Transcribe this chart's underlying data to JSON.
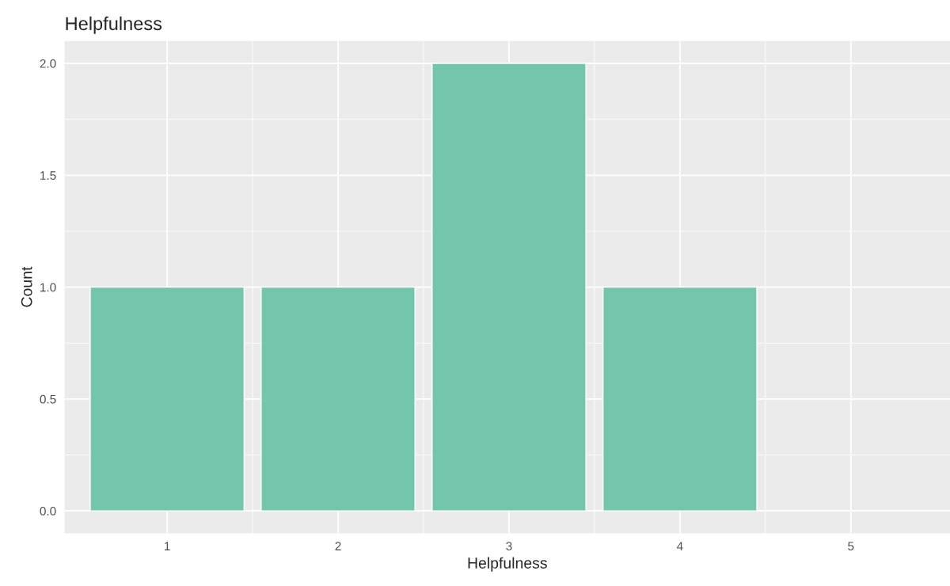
{
  "chart_data": {
    "type": "bar",
    "title": "Helpfulness",
    "xlabel": "Helpfulness",
    "ylabel": "Count",
    "x": [
      1,
      2,
      3,
      4
    ],
    "values": [
      1,
      1,
      2,
      1
    ],
    "color": "#73c5ab",
    "xlim": [
      0.4,
      5.58
    ],
    "xticks": [
      1,
      2,
      3,
      4,
      5
    ],
    "ylim": [
      -0.1,
      2.1
    ],
    "yticks": [
      {
        "value": 0,
        "label": "0.0"
      },
      {
        "value": 0.5,
        "label": "0.5"
      },
      {
        "value": 1,
        "label": "1.0"
      },
      {
        "value": 1.5,
        "label": "1.5"
      },
      {
        "value": 2,
        "label": "2.0"
      }
    ],
    "grid": true
  }
}
